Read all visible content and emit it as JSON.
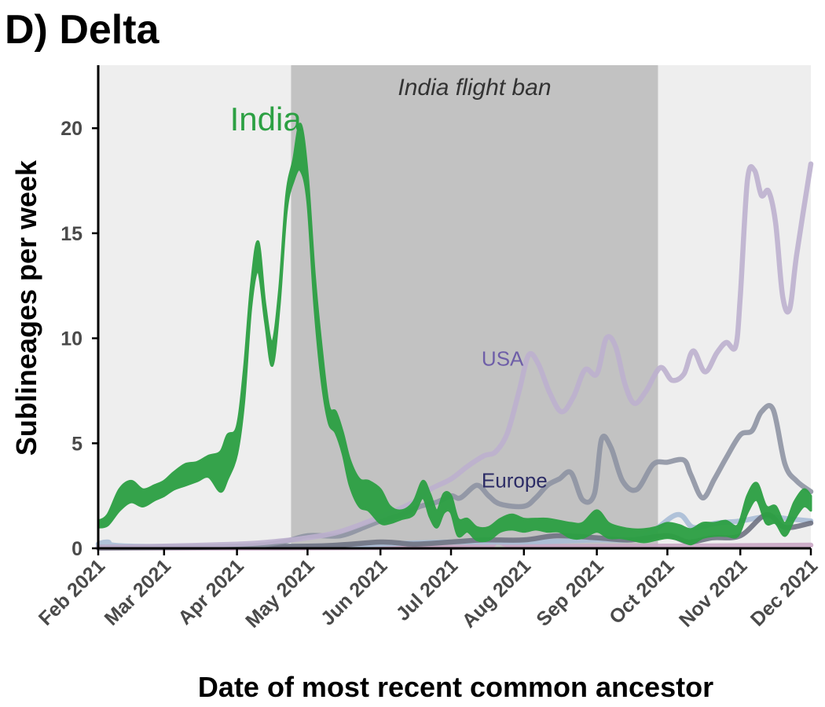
{
  "chart_data": {
    "type": "area",
    "panel_title": "D) Delta",
    "xlabel": "Date of most recent common ancestor",
    "ylabel": "Sublineages per week",
    "x_ticks": [
      "2021-02-01",
      "2021-03-01",
      "2021-04-01",
      "2021-05-01",
      "2021-06-01",
      "2021-07-01",
      "2021-08-01",
      "2021-09-01",
      "2021-10-01",
      "2021-11-01",
      "2021-12-01"
    ],
    "x_tick_labels": [
      "Feb 2021",
      "Mar 2021",
      "Apr 2021",
      "May 2021",
      "Jun 2021",
      "Jul 2021",
      "Aug 2021",
      "Sep 2021",
      "Oct 2021",
      "Nov 2021",
      "Dec 2021"
    ],
    "xlim": [
      "2021-02-01",
      "2021-12-01"
    ],
    "ylim": [
      0,
      23
    ],
    "y_ticks": [
      0,
      5,
      10,
      15,
      20
    ],
    "grid": false,
    "legend": "none",
    "annotations": {
      "shaded_period": {
        "label": "India flight ban",
        "start": "2021-04-24",
        "end": "2021-09-27",
        "color": "#c2c2c2"
      },
      "background_color": "#eeeeee",
      "series_labels": [
        {
          "text": "India",
          "series": "India",
          "x": "2021-04-11",
          "y": 20.0
        },
        {
          "text": "USA",
          "series": "USA",
          "x": "2021-07-15",
          "y": 9.0
        },
        {
          "text": "Europe",
          "series": "Europe",
          "x": "2021-07-15",
          "y": 3.3
        }
      ]
    },
    "series": [
      {
        "name": "India",
        "color": "#2ca043",
        "opacity": 0.95,
        "points": [
          [
            "2021-02-01",
            1.0,
            1.3
          ],
          [
            "2021-02-05",
            1.1,
            1.6
          ],
          [
            "2021-02-10",
            1.8,
            2.8
          ],
          [
            "2021-02-15",
            2.2,
            3.2
          ],
          [
            "2021-02-20",
            2.0,
            2.8
          ],
          [
            "2021-02-25",
            2.3,
            3.0
          ],
          [
            "2021-03-01",
            2.5,
            3.2
          ],
          [
            "2021-03-05",
            2.8,
            3.6
          ],
          [
            "2021-03-10",
            3.0,
            4.0
          ],
          [
            "2021-03-15",
            3.2,
            4.1
          ],
          [
            "2021-03-20",
            3.4,
            4.4
          ],
          [
            "2021-03-25",
            2.7,
            4.6
          ],
          [
            "2021-03-28",
            3.3,
            5.4
          ],
          [
            "2021-04-01",
            4.5,
            5.8
          ],
          [
            "2021-04-04",
            7.0,
            8.5
          ],
          [
            "2021-04-07",
            11.5,
            12.5
          ],
          [
            "2021-04-10",
            13.2,
            14.6
          ],
          [
            "2021-04-13",
            10.8,
            11.6
          ],
          [
            "2021-04-16",
            8.7,
            9.8
          ],
          [
            "2021-04-19",
            11.5,
            12.3
          ],
          [
            "2021-04-22",
            16.0,
            16.8
          ],
          [
            "2021-04-25",
            17.5,
            18.5
          ],
          [
            "2021-04-28",
            18.0,
            20.2
          ],
          [
            "2021-05-01",
            16.5,
            17.8
          ],
          [
            "2021-05-04",
            11.5,
            13.0
          ],
          [
            "2021-05-07",
            8.0,
            9.5
          ],
          [
            "2021-05-10",
            6.0,
            6.8
          ],
          [
            "2021-05-13",
            5.5,
            6.5
          ],
          [
            "2021-05-16",
            4.5,
            5.5
          ],
          [
            "2021-05-19",
            3.0,
            4.2
          ],
          [
            "2021-05-23",
            2.0,
            3.3
          ],
          [
            "2021-05-27",
            1.8,
            3.2
          ],
          [
            "2021-06-01",
            1.2,
            2.8
          ],
          [
            "2021-06-05",
            1.2,
            2.0
          ],
          [
            "2021-06-10",
            1.4,
            1.8
          ],
          [
            "2021-06-15",
            1.6,
            2.2
          ],
          [
            "2021-06-19",
            2.4,
            3.2
          ],
          [
            "2021-06-22",
            1.5,
            2.6
          ],
          [
            "2021-06-25",
            1.0,
            1.8
          ],
          [
            "2021-06-28",
            1.7,
            2.6
          ],
          [
            "2021-07-01",
            1.7,
            2.5
          ],
          [
            "2021-07-04",
            0.6,
            1.4
          ],
          [
            "2021-07-08",
            0.8,
            1.4
          ],
          [
            "2021-07-12",
            0.4,
            1.0
          ],
          [
            "2021-07-17",
            0.4,
            1.0
          ],
          [
            "2021-07-22",
            0.8,
            1.4
          ],
          [
            "2021-07-27",
            0.9,
            1.6
          ],
          [
            "2021-08-01",
            0.8,
            1.4
          ],
          [
            "2021-08-06",
            0.9,
            1.4
          ],
          [
            "2021-08-11",
            0.8,
            1.4
          ],
          [
            "2021-08-16",
            0.8,
            1.3
          ],
          [
            "2021-08-21",
            0.5,
            1.2
          ],
          [
            "2021-08-26",
            0.5,
            1.2
          ],
          [
            "2021-09-01",
            0.8,
            1.8
          ],
          [
            "2021-09-06",
            0.5,
            1.2
          ],
          [
            "2021-09-11",
            0.5,
            1.0
          ],
          [
            "2021-09-16",
            0.4,
            0.9
          ],
          [
            "2021-09-21",
            0.3,
            0.9
          ],
          [
            "2021-09-26",
            0.4,
            1.0
          ],
          [
            "2021-10-01",
            0.5,
            1.2
          ],
          [
            "2021-10-06",
            0.4,
            1.1
          ],
          [
            "2021-10-11",
            0.2,
            0.9
          ],
          [
            "2021-10-16",
            0.5,
            1.2
          ],
          [
            "2021-10-21",
            0.6,
            1.2
          ],
          [
            "2021-10-26",
            0.6,
            1.3
          ],
          [
            "2021-10-31",
            0.6,
            1.1
          ],
          [
            "2021-11-04",
            1.7,
            2.5
          ],
          [
            "2021-11-08",
            2.3,
            3.1
          ],
          [
            "2021-11-12",
            1.2,
            2.0
          ],
          [
            "2021-11-16",
            1.2,
            2.0
          ],
          [
            "2021-11-20",
            0.6,
            1.2
          ],
          [
            "2021-11-24",
            1.4,
            2.2
          ],
          [
            "2021-11-28",
            2.0,
            2.8
          ],
          [
            "2021-12-01",
            1.8,
            2.5
          ]
        ]
      },
      {
        "name": "USA",
        "color": "#bcb0ce",
        "points": [
          [
            "2021-02-01",
            0.05
          ],
          [
            "2021-03-01",
            0.1
          ],
          [
            "2021-04-01",
            0.2
          ],
          [
            "2021-04-15",
            0.3
          ],
          [
            "2021-05-01",
            0.5
          ],
          [
            "2021-05-15",
            0.8
          ],
          [
            "2021-06-01",
            1.5
          ],
          [
            "2021-06-15",
            2.2
          ],
          [
            "2021-06-22",
            2.8
          ],
          [
            "2021-07-01",
            3.3
          ],
          [
            "2021-07-08",
            3.9
          ],
          [
            "2021-07-15",
            4.4
          ],
          [
            "2021-07-20",
            4.6
          ],
          [
            "2021-07-25",
            5.5
          ],
          [
            "2021-07-30",
            7.5
          ],
          [
            "2021-08-03",
            9.2
          ],
          [
            "2021-08-07",
            8.8
          ],
          [
            "2021-08-12",
            7.4
          ],
          [
            "2021-08-17",
            6.5
          ],
          [
            "2021-08-22",
            7.2
          ],
          [
            "2021-08-27",
            8.5
          ],
          [
            "2021-09-01",
            8.3
          ],
          [
            "2021-09-05",
            10.0
          ],
          [
            "2021-09-09",
            9.6
          ],
          [
            "2021-09-13",
            7.8
          ],
          [
            "2021-09-17",
            6.9
          ],
          [
            "2021-09-22",
            7.5
          ],
          [
            "2021-09-28",
            8.6
          ],
          [
            "2021-10-03",
            8.0
          ],
          [
            "2021-10-08",
            8.3
          ],
          [
            "2021-10-12",
            9.4
          ],
          [
            "2021-10-17",
            8.4
          ],
          [
            "2021-10-22",
            9.3
          ],
          [
            "2021-10-26",
            9.8
          ],
          [
            "2021-10-30",
            9.6
          ],
          [
            "2021-11-01",
            12.0
          ],
          [
            "2021-11-04",
            17.5
          ],
          [
            "2021-11-07",
            18.0
          ],
          [
            "2021-11-10",
            16.8
          ],
          [
            "2021-11-13",
            17.0
          ],
          [
            "2021-11-16",
            15.5
          ],
          [
            "2021-11-19",
            12.0
          ],
          [
            "2021-11-22",
            11.4
          ],
          [
            "2021-11-25",
            14.0
          ],
          [
            "2021-12-01",
            18.3
          ]
        ]
      },
      {
        "name": "Europe",
        "color": "#8e94a3",
        "points": [
          [
            "2021-02-01",
            0.05
          ],
          [
            "2021-04-01",
            0.1
          ],
          [
            "2021-04-20",
            0.3
          ],
          [
            "2021-05-01",
            0.6
          ],
          [
            "2021-05-15",
            0.6
          ],
          [
            "2021-05-25",
            1.0
          ],
          [
            "2021-06-01",
            1.3
          ],
          [
            "2021-06-10",
            1.6
          ],
          [
            "2021-06-18",
            2.0
          ],
          [
            "2021-06-25",
            2.2
          ],
          [
            "2021-07-01",
            2.5
          ],
          [
            "2021-07-05",
            2.4
          ],
          [
            "2021-07-12",
            3.0
          ],
          [
            "2021-07-17",
            2.5
          ],
          [
            "2021-07-22",
            2.1
          ],
          [
            "2021-08-01",
            2.0
          ],
          [
            "2021-08-06",
            2.4
          ],
          [
            "2021-08-11",
            3.0
          ],
          [
            "2021-08-16",
            3.3
          ],
          [
            "2021-08-21",
            3.6
          ],
          [
            "2021-08-26",
            2.3
          ],
          [
            "2021-08-31",
            2.6
          ],
          [
            "2021-09-03",
            5.2
          ],
          [
            "2021-09-07",
            4.8
          ],
          [
            "2021-09-12",
            3.2
          ],
          [
            "2021-09-18",
            2.8
          ],
          [
            "2021-09-25",
            4.0
          ],
          [
            "2021-10-01",
            4.1
          ],
          [
            "2021-10-08",
            4.2
          ],
          [
            "2021-10-11",
            3.5
          ],
          [
            "2021-10-16",
            2.4
          ],
          [
            "2021-10-21",
            3.3
          ],
          [
            "2021-10-26",
            4.3
          ],
          [
            "2021-11-01",
            5.4
          ],
          [
            "2021-11-06",
            5.6
          ],
          [
            "2021-11-10",
            6.5
          ],
          [
            "2021-11-15",
            6.6
          ],
          [
            "2021-11-20",
            4.0
          ],
          [
            "2021-11-25",
            3.2
          ],
          [
            "2021-12-01",
            2.7
          ]
        ]
      },
      {
        "name": "",
        "color": "#6f7282",
        "points": [
          [
            "2021-02-01",
            0.02
          ],
          [
            "2021-05-01",
            0.1
          ],
          [
            "2021-06-01",
            0.3
          ],
          [
            "2021-06-15",
            0.2
          ],
          [
            "2021-07-01",
            0.3
          ],
          [
            "2021-07-15",
            0.4
          ],
          [
            "2021-08-01",
            0.4
          ],
          [
            "2021-08-15",
            0.6
          ],
          [
            "2021-09-01",
            0.5
          ],
          [
            "2021-09-15",
            0.4
          ],
          [
            "2021-10-01",
            0.6
          ],
          [
            "2021-10-10",
            0.3
          ],
          [
            "2021-10-20",
            0.5
          ],
          [
            "2021-11-01",
            0.6
          ],
          [
            "2021-11-12",
            1.6
          ],
          [
            "2021-11-20",
            1.0
          ],
          [
            "2021-12-01",
            1.2
          ]
        ]
      },
      {
        "name": "",
        "color": "#a8bcd6",
        "points": [
          [
            "2021-02-01",
            0.2
          ],
          [
            "2021-02-05",
            0.3
          ],
          [
            "2021-02-15",
            0.1
          ],
          [
            "2021-05-01",
            0.1
          ],
          [
            "2021-06-01",
            0.2
          ],
          [
            "2021-07-01",
            0.3
          ],
          [
            "2021-08-01",
            0.3
          ],
          [
            "2021-09-01",
            0.4
          ],
          [
            "2021-09-20",
            0.5
          ],
          [
            "2021-10-05",
            1.6
          ],
          [
            "2021-10-12",
            1.0
          ],
          [
            "2021-10-22",
            1.2
          ],
          [
            "2021-11-01",
            1.3
          ],
          [
            "2021-11-12",
            1.5
          ],
          [
            "2021-11-22",
            1.4
          ],
          [
            "2021-12-01",
            1.3
          ]
        ]
      },
      {
        "name": "",
        "color": "#c9a6c4",
        "points": [
          [
            "2021-02-01",
            0.02
          ],
          [
            "2021-07-01",
            0.05
          ],
          [
            "2021-07-20",
            0.3
          ],
          [
            "2021-08-01",
            0.1
          ],
          [
            "2021-10-01",
            0.1
          ],
          [
            "2021-12-01",
            0.15
          ]
        ]
      }
    ]
  }
}
